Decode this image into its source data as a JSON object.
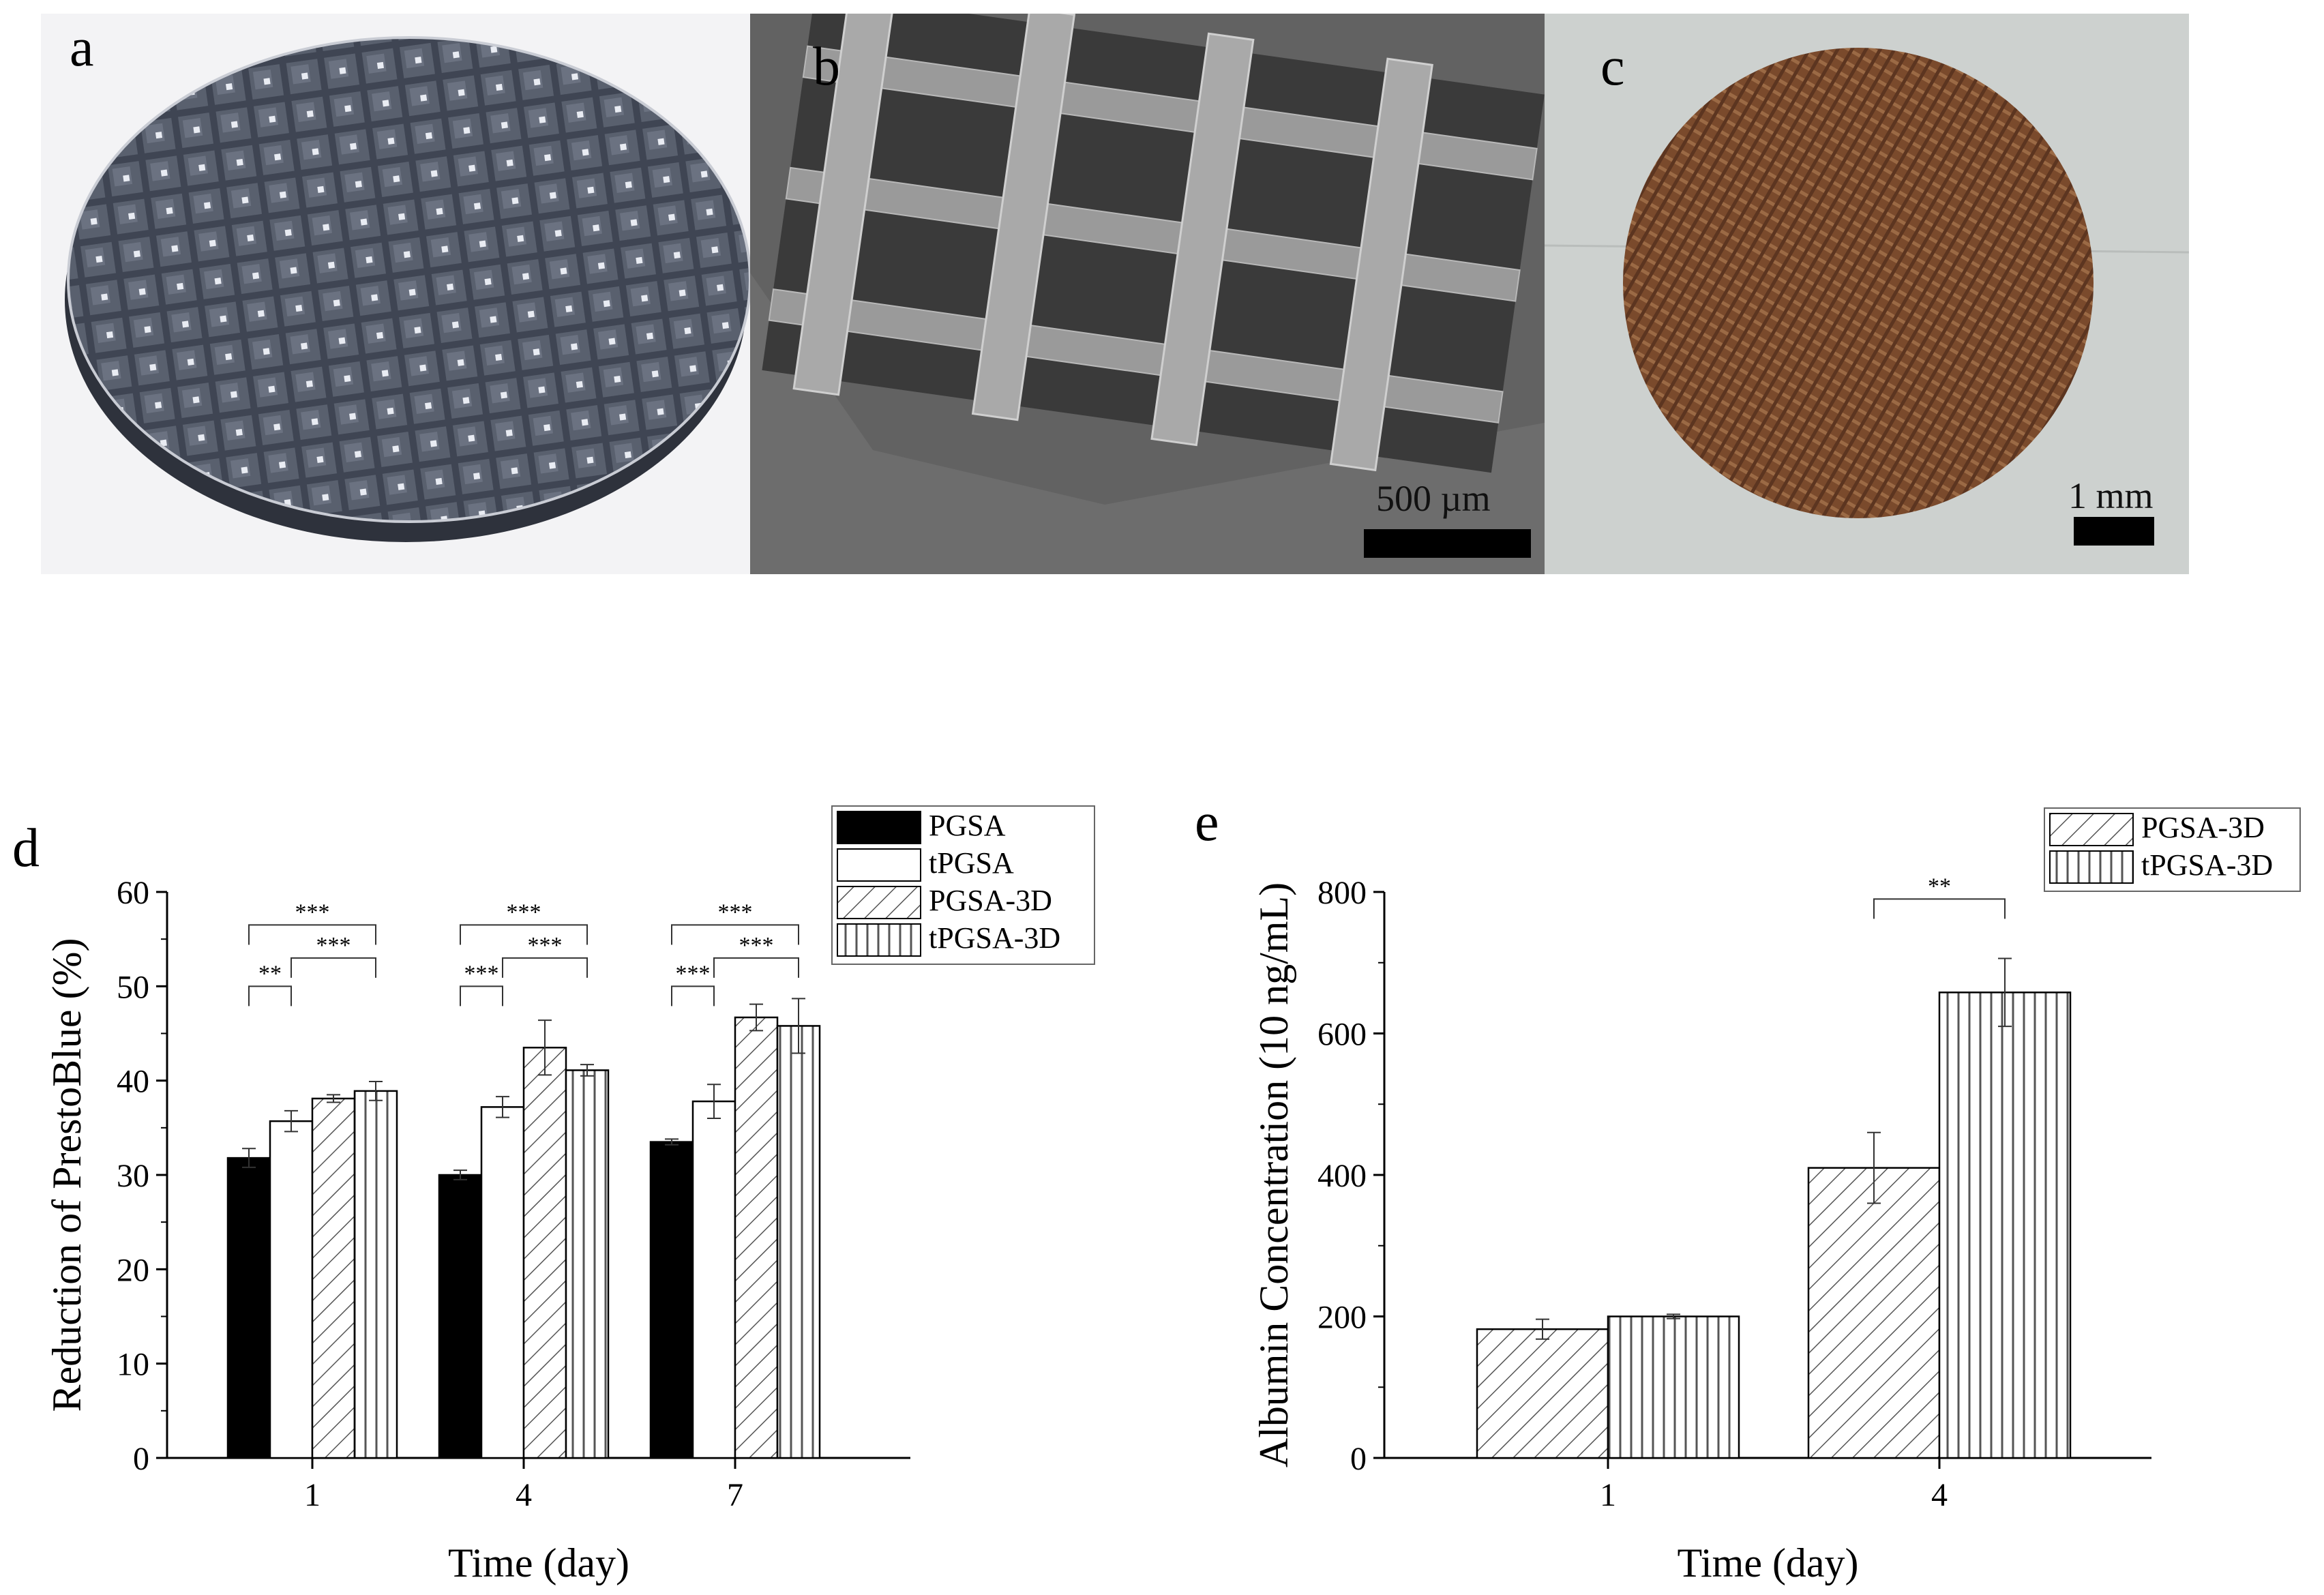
{
  "panels": {
    "a": {
      "letter": "a"
    },
    "b": {
      "letter": "b",
      "scalebar_label": "500 µm"
    },
    "c": {
      "letter": "c",
      "scalebar_label": "1 mm"
    }
  },
  "colors": {
    "bar_fill": "#000000",
    "bar_empty": "#ffffff",
    "hatch": "#555555",
    "render_mesh": "#4f5563",
    "sem_bg": "#5f5f5f",
    "photo_disc": "#7a4a2c"
  },
  "chart_data": [
    {
      "letter": "d",
      "type": "bar",
      "title": "",
      "xlabel": "Time (day)",
      "ylabel": "Reduction of PrestoBlue (%)",
      "ylim": [
        0,
        60
      ],
      "yticks": [
        "0",
        "10",
        "20",
        "30",
        "40",
        "50",
        "60"
      ],
      "categories": [
        "1",
        "4",
        "7"
      ],
      "legend_position": "top-right",
      "series": [
        {
          "name": "PGSA",
          "pattern": "solid",
          "values": [
            31.8,
            30.0,
            33.5
          ],
          "errors": [
            1.0,
            0.5,
            0.3
          ]
        },
        {
          "name": "tPGSA",
          "pattern": "empty",
          "values": [
            35.7,
            37.2,
            37.8
          ],
          "errors": [
            1.1,
            1.1,
            1.8
          ]
        },
        {
          "name": "PGSA-3D",
          "pattern": "diagonal",
          "values": [
            38.1,
            43.5,
            46.7
          ],
          "errors": [
            0.4,
            2.9,
            1.4
          ]
        },
        {
          "name": "tPGSA-3D",
          "pattern": "vertical",
          "values": [
            38.9,
            41.1,
            45.8
          ],
          "errors": [
            1.0,
            0.6,
            2.9
          ]
        }
      ],
      "significance": [
        {
          "category": "1",
          "from": 0,
          "to": 1,
          "label": "**",
          "level": 50
        },
        {
          "category": "1",
          "from": 1,
          "to": 3,
          "label": "***",
          "level": 53
        },
        {
          "category": "1",
          "from": 0,
          "to": 3,
          "label": "***",
          "level": 56.5
        },
        {
          "category": "4",
          "from": 0,
          "to": 1,
          "label": "***",
          "level": 50
        },
        {
          "category": "4",
          "from": 1,
          "to": 3,
          "label": "***",
          "level": 53
        },
        {
          "category": "4",
          "from": 0,
          "to": 3,
          "label": "***",
          "level": 56.5
        },
        {
          "category": "7",
          "from": 0,
          "to": 1,
          "label": "***",
          "level": 50
        },
        {
          "category": "7",
          "from": 1,
          "to": 3,
          "label": "***",
          "level": 53
        },
        {
          "category": "7",
          "from": 0,
          "to": 3,
          "label": "***",
          "level": 56.5
        }
      ]
    },
    {
      "letter": "e",
      "type": "bar",
      "title": "",
      "xlabel": "Time (day)",
      "ylabel": "Albumin Concentration (10 ng/mL)",
      "ylim": [
        0,
        800
      ],
      "yticks": [
        "0",
        "200",
        "400",
        "600",
        "800"
      ],
      "categories": [
        "1",
        "4"
      ],
      "legend_position": "top-right",
      "series": [
        {
          "name": "PGSA-3D",
          "pattern": "diagonal",
          "values": [
            182,
            410
          ],
          "errors": [
            14,
            50
          ]
        },
        {
          "name": "tPGSA-3D",
          "pattern": "vertical",
          "values": [
            200,
            658
          ],
          "errors": [
            3,
            48
          ]
        }
      ],
      "significance": [
        {
          "category": "4",
          "from": 0,
          "to": 1,
          "label": "**",
          "level": 790
        }
      ]
    }
  ]
}
